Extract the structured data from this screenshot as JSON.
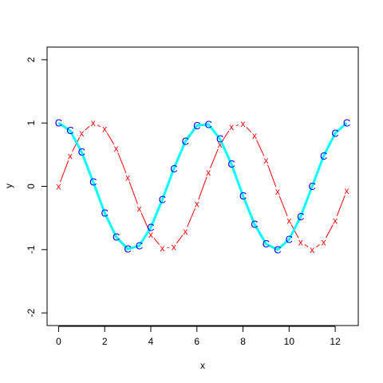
{
  "chart_data": {
    "type": "line",
    "title": "",
    "xlabel": "x",
    "ylabel": "y",
    "xlim": [
      -0.5,
      13.0
    ],
    "ylim": [
      -2.2,
      2.2
    ],
    "x_ticks": [
      "0",
      "2",
      "4",
      "6",
      "8",
      "10",
      "12"
    ],
    "y_ticks": [
      "-2",
      "-1",
      "0",
      "1",
      "2"
    ],
    "grid": false,
    "legend": "none",
    "series": [
      {
        "style": "cyan thick line with blue 'C' markers",
        "line_color": "#00ffff",
        "marker_color": "#0000ff",
        "marker": "C",
        "x": [
          0,
          0.5,
          1,
          1.5,
          2,
          2.5,
          3,
          3.5,
          4,
          4.5,
          5,
          5.5,
          6,
          6.5,
          7,
          7.5,
          8,
          8.5,
          9,
          9.5,
          10,
          10.5,
          11,
          11.5,
          12,
          12.5
        ],
        "y": [
          1.0,
          0.88,
          0.54,
          0.07,
          -0.42,
          -0.8,
          -0.99,
          -0.94,
          -0.65,
          -0.21,
          0.28,
          0.71,
          0.96,
          0.98,
          0.75,
          0.35,
          -0.15,
          -0.6,
          -0.91,
          -1.0,
          -0.84,
          -0.48,
          0.0,
          0.48,
          0.84,
          1.0
        ]
      },
      {
        "style": "thin red line with red 'x' markers",
        "line_color": "#ff0000",
        "marker_color": "#ff0000",
        "marker": "x",
        "x": [
          0,
          0.5,
          1,
          1.5,
          2,
          2.5,
          3,
          3.5,
          4,
          4.5,
          5,
          5.5,
          6,
          6.5,
          7,
          7.5,
          8,
          8.5,
          9,
          9.5,
          10,
          10.5,
          11,
          11.5,
          12,
          12.5
        ],
        "y": [
          0.0,
          0.48,
          0.84,
          1.0,
          0.91,
          0.6,
          0.14,
          -0.35,
          -0.76,
          -0.98,
          -0.96,
          -0.71,
          -0.28,
          0.22,
          0.66,
          0.94,
          0.99,
          0.8,
          0.41,
          -0.08,
          -0.54,
          -0.88,
          -1.0,
          -0.88,
          -0.54,
          -0.07
        ]
      }
    ]
  }
}
